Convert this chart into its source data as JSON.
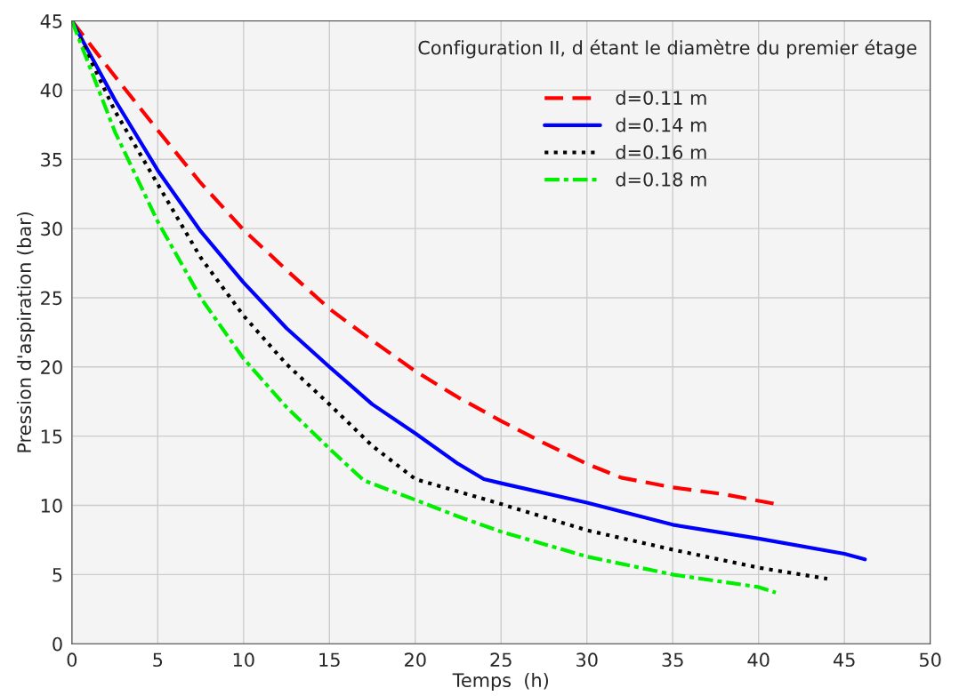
{
  "chart_data": {
    "type": "line",
    "xlabel": "Temps  (h)",
    "ylabel": "Pression d'aspiration (bar)",
    "annotations": [
      "Configuration II, d étant le diamètre du premier étage"
    ],
    "xlim": [
      0,
      50
    ],
    "ylim": [
      0,
      45
    ],
    "xticks": [
      0,
      5,
      10,
      15,
      20,
      25,
      30,
      35,
      40,
      45,
      50
    ],
    "yticks": [
      0,
      5,
      10,
      15,
      20,
      25,
      30,
      35,
      40,
      45
    ],
    "grid": true,
    "legend": "top right",
    "series": [
      {
        "name": "d=0.11 m",
        "color": "#ff0000",
        "line_style": "dashed",
        "x": [
          0,
          2.5,
          5,
          7.5,
          10,
          12.5,
          15,
          17.5,
          20,
          22.5,
          25,
          27.5,
          30,
          32,
          35,
          38,
          41
        ],
        "values": [
          45,
          41,
          37.1,
          33.3,
          29.9,
          27,
          24.2,
          21.9,
          19.7,
          17.8,
          16.1,
          14.5,
          13,
          12,
          11.3,
          10.8,
          10.1
        ]
      },
      {
        "name": "d=0.14 m",
        "color": "#0000ff",
        "line_style": "solid",
        "x": [
          0,
          2.5,
          5,
          7.5,
          10,
          12.5,
          15,
          17.5,
          20,
          22.5,
          24,
          25,
          30,
          35,
          40,
          45,
          46.2
        ],
        "values": [
          45,
          39.3,
          34.2,
          29.8,
          26.1,
          22.8,
          20,
          17.3,
          15.2,
          13,
          11.9,
          11.6,
          10.2,
          8.6,
          7.6,
          6.5,
          6.1
        ]
      },
      {
        "name": "d=0.16 m",
        "color": "#000000",
        "line_style": "dotted",
        "x": [
          0,
          2.5,
          5,
          7.5,
          10,
          12.5,
          15,
          17.5,
          20,
          22.5,
          25,
          30,
          35,
          40,
          44
        ],
        "values": [
          45,
          38.5,
          33.2,
          27.9,
          23.7,
          20.2,
          17.3,
          14.3,
          11.9,
          11,
          10.1,
          8.2,
          6.8,
          5.5,
          4.7
        ]
      },
      {
        "name": "d=0.18 m",
        "color": "#00ee00",
        "line_style": "dashdot",
        "x": [
          0,
          2.5,
          5,
          7.5,
          10,
          12.5,
          15,
          17,
          20,
          22.5,
          25,
          30,
          35,
          40,
          41
        ],
        "values": [
          45,
          37,
          30.5,
          25,
          20.6,
          17.1,
          14.1,
          11.8,
          10.4,
          9.2,
          8.1,
          6.3,
          5,
          4.1,
          3.7
        ]
      }
    ]
  }
}
